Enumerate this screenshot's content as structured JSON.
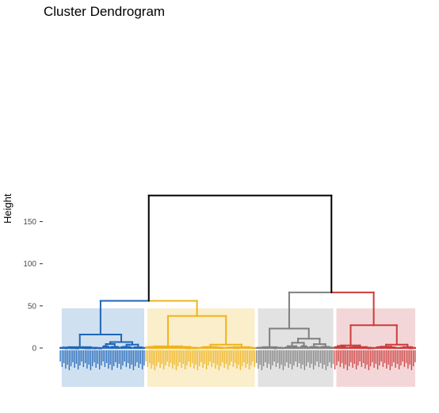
{
  "chart_data": {
    "type": "dendrogram",
    "title": "Cluster Dendrogram",
    "xlabel": "",
    "ylabel": "Height",
    "ylim": [
      0,
      180
    ],
    "yticks": [
      0,
      50,
      100,
      150
    ],
    "grid": false,
    "leaf_count": 200,
    "root_merge_height": 181,
    "clusters": [
      {
        "color": "#1F66B8",
        "fill": "#CFE0F0",
        "leaf_range": [
          0,
          48
        ],
        "top_merge_height": 16,
        "subclusters": [
          {
            "leaf_range": [
              0,
              24
            ],
            "merge_height": 1
          },
          {
            "leaf_range": [
              24,
              48
            ],
            "merge_height": 7
          }
        ]
      },
      {
        "color": "#EFB31C",
        "fill": "#FAEECB",
        "leaf_range": [
          48,
          110
        ],
        "top_merge_height": 38,
        "subclusters": [
          {
            "leaf_range": [
              48,
              79
            ],
            "merge_height": 2
          },
          {
            "leaf_range": [
              79,
              110
            ],
            "merge_height": 4
          }
        ]
      },
      {
        "color": "#7F7F7F",
        "fill": "#E2E2E2",
        "leaf_range": [
          110,
          154
        ],
        "top_merge_height": 23,
        "subclusters": [
          {
            "leaf_range": [
              110,
              126
            ],
            "merge_height": 1
          },
          {
            "leaf_range": [
              126,
              154
            ],
            "merge_height": 11
          }
        ]
      },
      {
        "color": "#CC3B3B",
        "fill": "#F3D7D8",
        "leaf_range": [
          154,
          200
        ],
        "top_merge_height": 27,
        "subclusters": [
          {
            "leaf_range": [
              154,
              177
            ],
            "merge_height": 3
          },
          {
            "leaf_range": [
              177,
              200
            ],
            "merge_height": 4
          }
        ]
      }
    ],
    "merges": [
      {
        "left": "blue",
        "right": "yellow",
        "height": 56,
        "color": "#1F66B8/#EFB31C"
      },
      {
        "left": "gray",
        "right": "red",
        "height": 66,
        "color": "#7F7F7F/#CC3B3B"
      },
      {
        "left": "blue+yellow",
        "right": "gray+red",
        "height": 181,
        "color": "#000000"
      }
    ]
  }
}
